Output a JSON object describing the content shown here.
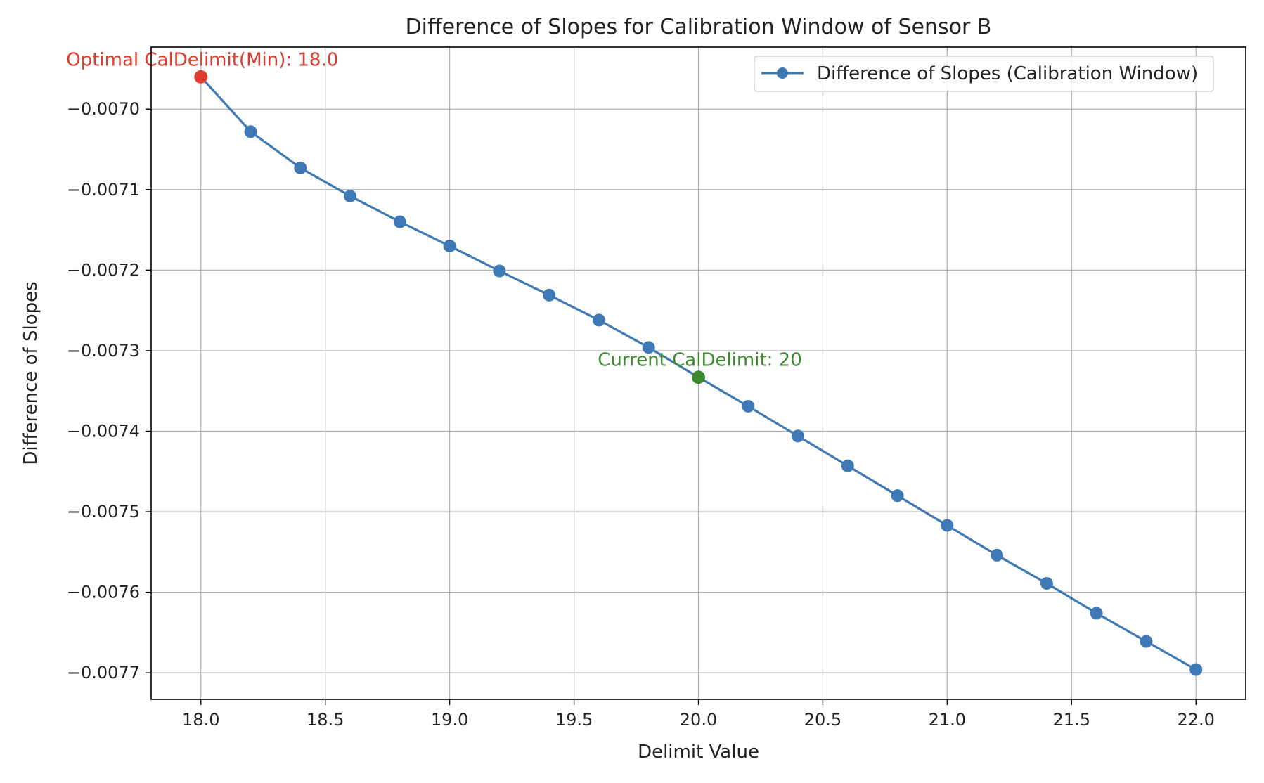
{
  "chart_data": {
    "type": "line",
    "title": "Difference of Slopes for Calibration Window of Sensor B",
    "xlabel": "Delimit Value",
    "ylabel": "Difference of Slopes",
    "xlim": [
      17.8,
      22.2
    ],
    "ylim": [
      -0.007733,
      -0.006923
    ],
    "grid": true,
    "legend_position": "top-right",
    "x_ticks": [
      {
        "value": 18.0,
        "label": "18.0"
      },
      {
        "value": 18.5,
        "label": "18.5"
      },
      {
        "value": 19.0,
        "label": "19.0"
      },
      {
        "value": 19.5,
        "label": "19.5"
      },
      {
        "value": 20.0,
        "label": "20.0"
      },
      {
        "value": 20.5,
        "label": "20.5"
      },
      {
        "value": 21.0,
        "label": "21.0"
      },
      {
        "value": 21.5,
        "label": "21.5"
      },
      {
        "value": 22.0,
        "label": "22.0"
      }
    ],
    "y_ticks": [
      {
        "value": -0.007,
        "label": "−0.0070"
      },
      {
        "value": -0.0071,
        "label": "−0.0071"
      },
      {
        "value": -0.0072,
        "label": "−0.0072"
      },
      {
        "value": -0.0073,
        "label": "−0.0073"
      },
      {
        "value": -0.0074,
        "label": "−0.0074"
      },
      {
        "value": -0.0075,
        "label": "−0.0075"
      },
      {
        "value": -0.0076,
        "label": "−0.0076"
      },
      {
        "value": -0.0077,
        "label": "−0.0077"
      }
    ],
    "series": [
      {
        "name": "Difference of Slopes (Calibration Window)",
        "color": "#3f79b5",
        "x": [
          18.0,
          18.2,
          18.4,
          18.6,
          18.8,
          19.0,
          19.2,
          19.4,
          19.6,
          19.8,
          20.0,
          20.2,
          20.4,
          20.6,
          20.8,
          21.0,
          21.2,
          21.4,
          21.6,
          21.8,
          22.0
        ],
        "y": [
          -0.00696,
          -0.007028,
          -0.007073,
          -0.007108,
          -0.00714,
          -0.00717,
          -0.007201,
          -0.007231,
          -0.007262,
          -0.007296,
          -0.007333,
          -0.007369,
          -0.007406,
          -0.007443,
          -0.00748,
          -0.007517,
          -0.007554,
          -0.007589,
          -0.007626,
          -0.007661,
          -0.007696
        ]
      }
    ],
    "annotations": [
      {
        "text": "Optimal CalDelimit(Min): 18.0",
        "x": 18.0,
        "y": -0.00696,
        "color": "#e03c2d",
        "point_color": "#e03c2d"
      },
      {
        "text": "Current CalDelimit: 20",
        "x": 20.0,
        "y": -0.007333,
        "color": "#3c8a2e",
        "point_color": "#3c8a2e"
      }
    ]
  }
}
